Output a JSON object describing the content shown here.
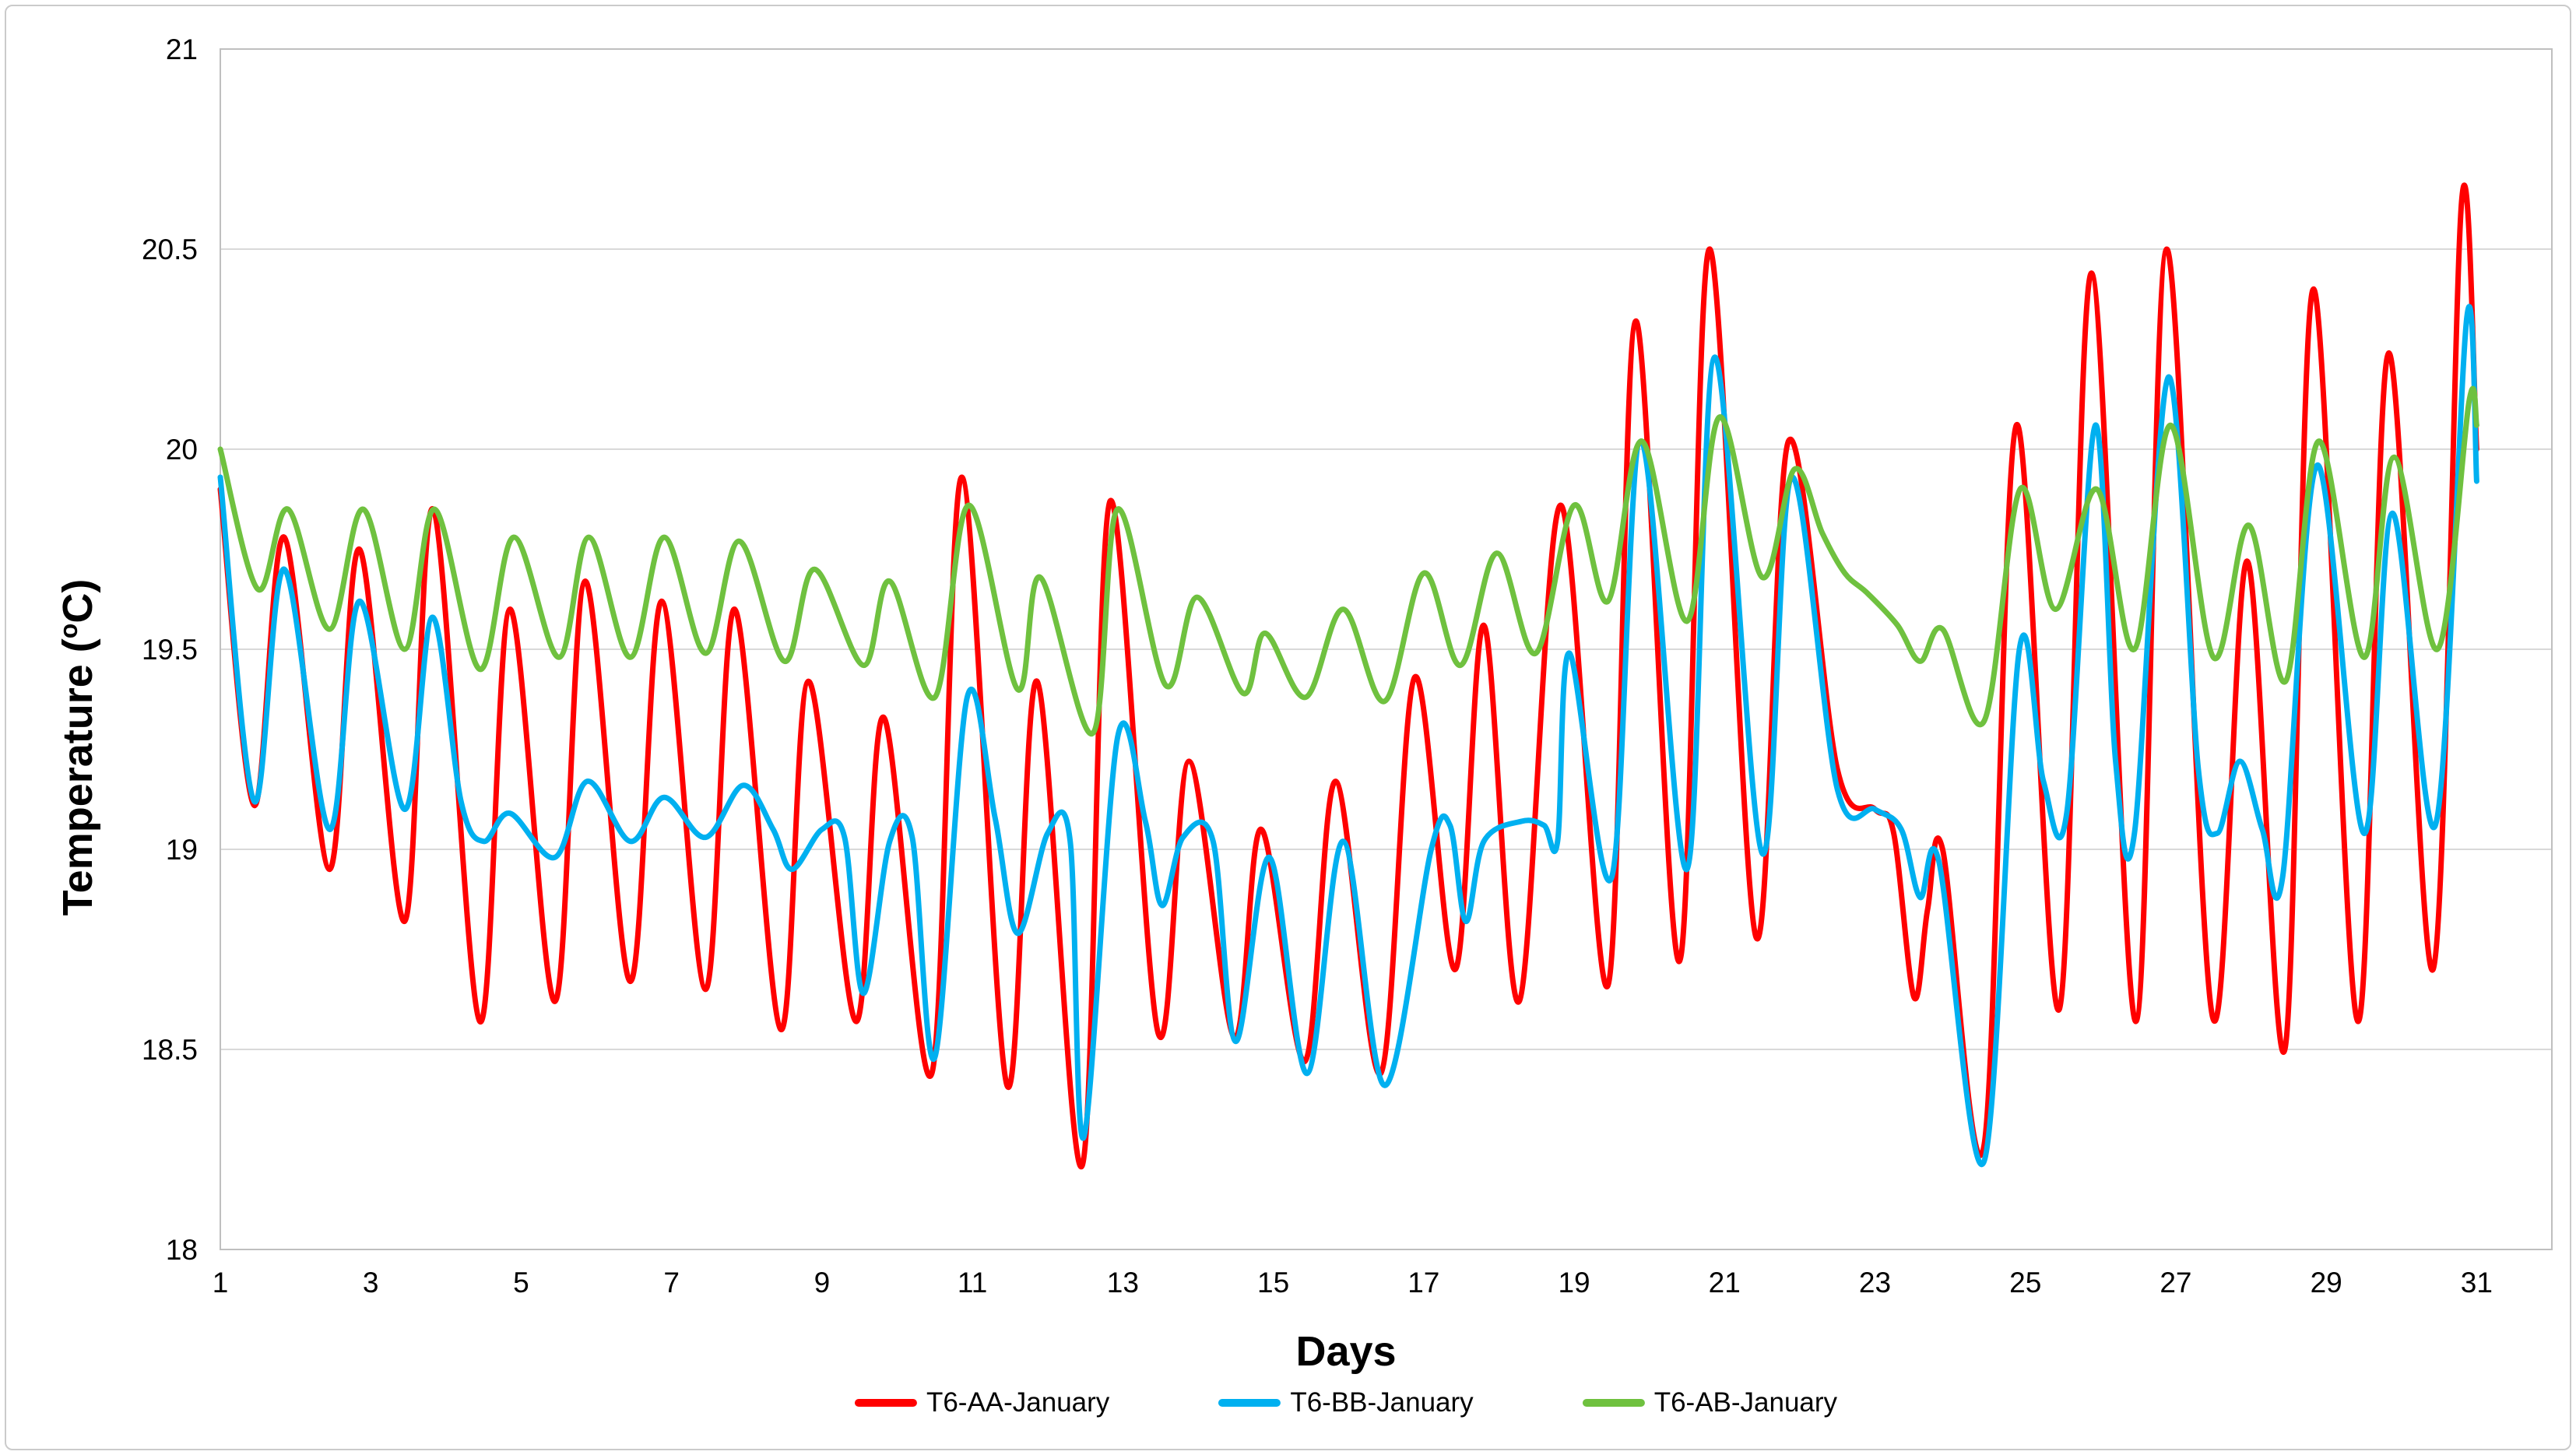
{
  "chart_data": {
    "type": "line",
    "title": "",
    "xlabel": "Days",
    "ylabel": "Temperature (oC)",
    "ylabel_parts": {
      "prefix": "Temperature (",
      "sup": "o",
      "suffix": "C)"
    },
    "xlim": [
      1,
      32
    ],
    "ylim": [
      18,
      21
    ],
    "xticks": [
      1,
      3,
      5,
      7,
      9,
      11,
      13,
      15,
      17,
      19,
      21,
      23,
      25,
      27,
      29,
      31
    ],
    "yticks": [
      18,
      18.5,
      19,
      19.5,
      20,
      20.5,
      21
    ],
    "ytick_labels": [
      "18",
      "18.5",
      "19",
      "19.5",
      "20",
      "20.5",
      "21"
    ],
    "grid": "horizontal",
    "legend_position": "bottom",
    "series": [
      {
        "name": "T6-AA-January",
        "color": "#FF0000",
        "points": [
          [
            1.0,
            19.9
          ],
          [
            1.45,
            19.11
          ],
          [
            1.85,
            19.78
          ],
          [
            2.45,
            18.95
          ],
          [
            2.85,
            19.75
          ],
          [
            3.45,
            18.82
          ],
          [
            3.83,
            19.85
          ],
          [
            4.45,
            18.57
          ],
          [
            4.85,
            19.6
          ],
          [
            5.45,
            18.62
          ],
          [
            5.85,
            19.67
          ],
          [
            6.45,
            18.67
          ],
          [
            6.87,
            19.62
          ],
          [
            7.45,
            18.65
          ],
          [
            7.84,
            19.6
          ],
          [
            8.45,
            18.55
          ],
          [
            8.82,
            19.42
          ],
          [
            9.45,
            18.57
          ],
          [
            9.82,
            19.33
          ],
          [
            10.46,
            18.44
          ],
          [
            10.86,
            19.93
          ],
          [
            11.46,
            18.41
          ],
          [
            11.86,
            19.42
          ],
          [
            12.46,
            18.21
          ],
          [
            12.83,
            19.87
          ],
          [
            13.47,
            18.54
          ],
          [
            13.88,
            19.22
          ],
          [
            14.48,
            18.53
          ],
          [
            14.84,
            19.05
          ],
          [
            15.42,
            18.47
          ],
          [
            15.83,
            19.17
          ],
          [
            16.43,
            18.44
          ],
          [
            16.88,
            19.43
          ],
          [
            17.42,
            18.7
          ],
          [
            17.8,
            19.56
          ],
          [
            18.27,
            18.62
          ],
          [
            18.82,
            19.86
          ],
          [
            19.45,
            18.66
          ],
          [
            19.82,
            20.32
          ],
          [
            20.4,
            18.72
          ],
          [
            20.8,
            20.5
          ],
          [
            21.42,
            18.78
          ],
          [
            21.85,
            20.02
          ],
          [
            22.5,
            19.2
          ],
          [
            23.0,
            19.1
          ],
          [
            23.25,
            19.04
          ],
          [
            23.52,
            18.63
          ],
          [
            23.7,
            18.85
          ],
          [
            23.9,
            19.0
          ],
          [
            24.45,
            18.26
          ],
          [
            24.88,
            20.06
          ],
          [
            25.45,
            18.6
          ],
          [
            25.88,
            20.44
          ],
          [
            26.47,
            18.57
          ],
          [
            26.88,
            20.5
          ],
          [
            27.49,
            18.58
          ],
          [
            27.95,
            19.72
          ],
          [
            28.45,
            18.5
          ],
          [
            28.83,
            20.4
          ],
          [
            29.42,
            18.57
          ],
          [
            29.83,
            20.24
          ],
          [
            30.42,
            18.7
          ],
          [
            30.8,
            20.62
          ],
          [
            31.0,
            20.0
          ]
        ]
      },
      {
        "name": "T6-BB-January",
        "color": "#00B0F0",
        "points": [
          [
            1.0,
            19.93
          ],
          [
            1.45,
            19.12
          ],
          [
            1.85,
            19.7
          ],
          [
            2.45,
            19.05
          ],
          [
            2.85,
            19.62
          ],
          [
            3.45,
            19.1
          ],
          [
            3.82,
            19.58
          ],
          [
            4.2,
            19.12
          ],
          [
            4.5,
            19.02
          ],
          [
            4.85,
            19.09
          ],
          [
            5.45,
            18.98
          ],
          [
            5.88,
            19.17
          ],
          [
            6.45,
            19.02
          ],
          [
            6.9,
            19.13
          ],
          [
            7.45,
            19.03
          ],
          [
            7.95,
            19.16
          ],
          [
            8.35,
            19.05
          ],
          [
            8.6,
            18.95
          ],
          [
            9.0,
            19.05
          ],
          [
            9.3,
            19.03
          ],
          [
            9.55,
            18.64
          ],
          [
            9.9,
            19.02
          ],
          [
            10.2,
            19.03
          ],
          [
            10.5,
            18.48
          ],
          [
            10.93,
            19.38
          ],
          [
            11.3,
            19.08
          ],
          [
            11.6,
            18.79
          ],
          [
            12.0,
            19.04
          ],
          [
            12.3,
            19.02
          ],
          [
            12.48,
            18.28
          ],
          [
            12.93,
            19.28
          ],
          [
            13.3,
            19.07
          ],
          [
            13.52,
            18.86
          ],
          [
            13.8,
            19.03
          ],
          [
            14.2,
            19.02
          ],
          [
            14.5,
            18.52
          ],
          [
            14.95,
            18.98
          ],
          [
            15.45,
            18.44
          ],
          [
            15.93,
            19.02
          ],
          [
            16.48,
            18.41
          ],
          [
            17.1,
            19.0
          ],
          [
            17.35,
            19.06
          ],
          [
            17.56,
            18.82
          ],
          [
            17.8,
            19.02
          ],
          [
            18.3,
            19.07
          ],
          [
            18.6,
            19.06
          ],
          [
            18.78,
            19.02
          ],
          [
            18.94,
            19.49
          ],
          [
            19.5,
            18.93
          ],
          [
            19.89,
            20.02
          ],
          [
            20.5,
            18.95
          ],
          [
            20.87,
            20.23
          ],
          [
            21.5,
            18.99
          ],
          [
            21.89,
            19.93
          ],
          [
            22.5,
            19.15
          ],
          [
            23.0,
            19.1
          ],
          [
            23.35,
            19.05
          ],
          [
            23.6,
            18.88
          ],
          [
            23.85,
            18.97
          ],
          [
            24.45,
            18.22
          ],
          [
            24.92,
            19.5
          ],
          [
            25.24,
            19.17
          ],
          [
            25.55,
            19.09
          ],
          [
            25.93,
            20.06
          ],
          [
            26.2,
            19.22
          ],
          [
            26.45,
            19.04
          ],
          [
            26.9,
            20.18
          ],
          [
            27.3,
            19.2
          ],
          [
            27.55,
            19.04
          ],
          [
            27.85,
            19.22
          ],
          [
            28.15,
            19.05
          ],
          [
            28.42,
            18.93
          ],
          [
            28.88,
            19.96
          ],
          [
            29.5,
            19.04
          ],
          [
            29.88,
            19.84
          ],
          [
            30.45,
            19.06
          ],
          [
            30.87,
            20.33
          ],
          [
            31.0,
            19.92
          ]
        ]
      },
      {
        "name": "T6-AB-January",
        "color": "#6FC13F",
        "points": [
          [
            1.0,
            20.0
          ],
          [
            1.5,
            19.65
          ],
          [
            1.9,
            19.85
          ],
          [
            2.45,
            19.55
          ],
          [
            2.9,
            19.85
          ],
          [
            3.45,
            19.5
          ],
          [
            3.85,
            19.85
          ],
          [
            4.45,
            19.45
          ],
          [
            4.9,
            19.78
          ],
          [
            5.5,
            19.48
          ],
          [
            5.9,
            19.78
          ],
          [
            6.45,
            19.48
          ],
          [
            6.9,
            19.78
          ],
          [
            7.45,
            19.49
          ],
          [
            7.9,
            19.77
          ],
          [
            8.5,
            19.47
          ],
          [
            8.9,
            19.7
          ],
          [
            9.55,
            19.46
          ],
          [
            9.9,
            19.67
          ],
          [
            10.5,
            19.38
          ],
          [
            10.95,
            19.86
          ],
          [
            11.6,
            19.4
          ],
          [
            11.9,
            19.68
          ],
          [
            12.6,
            19.29
          ],
          [
            12.93,
            19.85
          ],
          [
            13.57,
            19.41
          ],
          [
            13.99,
            19.63
          ],
          [
            14.6,
            19.39
          ],
          [
            14.89,
            19.54
          ],
          [
            15.43,
            19.38
          ],
          [
            15.93,
            19.6
          ],
          [
            16.48,
            19.37
          ],
          [
            17.0,
            19.69
          ],
          [
            17.49,
            19.46
          ],
          [
            17.97,
            19.74
          ],
          [
            18.49,
            19.49
          ],
          [
            19.0,
            19.86
          ],
          [
            19.45,
            19.62
          ],
          [
            19.9,
            20.02
          ],
          [
            20.5,
            19.57
          ],
          [
            20.93,
            20.08
          ],
          [
            21.5,
            19.68
          ],
          [
            21.93,
            19.95
          ],
          [
            22.3,
            19.79
          ],
          [
            22.6,
            19.69
          ],
          [
            22.9,
            19.64
          ],
          [
            23.3,
            19.56
          ],
          [
            23.6,
            19.47
          ],
          [
            23.9,
            19.55
          ],
          [
            24.45,
            19.32
          ],
          [
            24.93,
            19.9
          ],
          [
            25.4,
            19.6
          ],
          [
            25.95,
            19.9
          ],
          [
            26.45,
            19.5
          ],
          [
            26.93,
            20.06
          ],
          [
            27.5,
            19.48
          ],
          [
            27.97,
            19.81
          ],
          [
            28.46,
            19.42
          ],
          [
            28.9,
            20.02
          ],
          [
            29.5,
            19.48
          ],
          [
            29.9,
            19.98
          ],
          [
            30.48,
            19.5
          ],
          [
            30.9,
            20.12
          ],
          [
            31.0,
            20.06
          ]
        ]
      }
    ]
  }
}
